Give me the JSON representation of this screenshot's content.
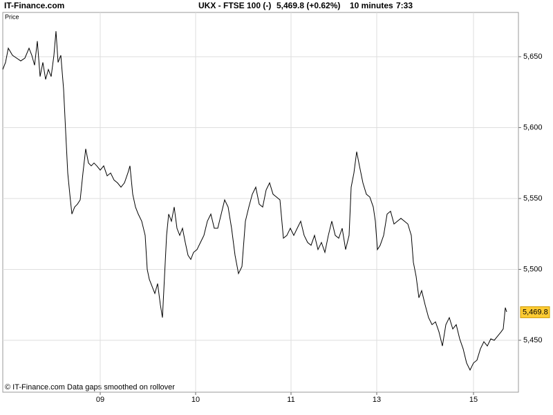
{
  "chart_data": {
    "type": "line",
    "brand": "IT-Finance.com",
    "title": "UKX - FTSE 100 (-)",
    "change": "5,469.8 (+0.62%)",
    "interval": "10 minutes",
    "time": "7:33",
    "y_label": "Price",
    "footnote": "© IT-Finance.com  Data gaps smoothed on rollover",
    "color": "#000000",
    "grid": true,
    "last": {
      "value": 5469.8,
      "label": "5,469.8"
    },
    "x": [
      0,
      4,
      8,
      14,
      20,
      26,
      32,
      38,
      42,
      46,
      50,
      54,
      58,
      62,
      66,
      70,
      74,
      77,
      80,
      84,
      88,
      91,
      94,
      97,
      100,
      104,
      108,
      112,
      116,
      120,
      124,
      128,
      132,
      136,
      141,
      146,
      151,
      156,
      161,
      166,
      171,
      176,
      181,
      184,
      188,
      192,
      196,
      201,
      206,
      209,
      212,
      216,
      220,
      224,
      228,
      231,
      234,
      237,
      240,
      244,
      248,
      252,
      256,
      260,
      264,
      268,
      272,
      276,
      281,
      286,
      291,
      296,
      301,
      306,
      311,
      316,
      321,
      326,
      331,
      336,
      341,
      346,
      351,
      356,
      361,
      366,
      371,
      376,
      381,
      386,
      391,
      396,
      401,
      406,
      411,
      416,
      421,
      426,
      431,
      436,
      441,
      446,
      451,
      456,
      461,
      466,
      471,
      476,
      481,
      486,
      491,
      496,
      501,
      504,
      508,
      512,
      516,
      521,
      526,
      531,
      536,
      539,
      542,
      546,
      551,
      556,
      561,
      566,
      571,
      576,
      581,
      586,
      591,
      594,
      598,
      602,
      606,
      611,
      616,
      621,
      626,
      631,
      636,
      641,
      646,
      651,
      656,
      661,
      666,
      671,
      676,
      681,
      686,
      691,
      696,
      701,
      706,
      711,
      716,
      721,
      724,
      727,
      729
    ],
    "values": [
      5641,
      5646,
      5656,
      5651,
      5649,
      5647,
      5649,
      5656,
      5651,
      5644,
      5661,
      5636,
      5646,
      5634,
      5641,
      5636,
      5651,
      5668,
      5646,
      5651,
      5627,
      5597,
      5568,
      5553,
      5539,
      5544,
      5546,
      5549,
      5568,
      5585,
      5575,
      5573,
      5575,
      5573,
      5570,
      5573,
      5566,
      5568,
      5563,
      5561,
      5558,
      5561,
      5568,
      5573,
      5553,
      5544,
      5539,
      5534,
      5524,
      5500,
      5493,
      5488,
      5483,
      5490,
      5475,
      5466,
      5495,
      5524,
      5539,
      5534,
      5544,
      5529,
      5524,
      5529,
      5519,
      5510,
      5507,
      5512,
      5514,
      5519,
      5524,
      5534,
      5539,
      5529,
      5529,
      5539,
      5549,
      5544,
      5529,
      5510,
      5497,
      5502,
      5534,
      5544,
      5553,
      5558,
      5546,
      5544,
      5556,
      5561,
      5553,
      5551,
      5549,
      5522,
      5524,
      5529,
      5524,
      5529,
      5534,
      5524,
      5519,
      5517,
      5524,
      5514,
      5519,
      5512,
      5524,
      5534,
      5524,
      5522,
      5529,
      5514,
      5524,
      5558,
      5568,
      5583,
      5573,
      5561,
      5553,
      5551,
      5544,
      5534,
      5514,
      5517,
      5524,
      5539,
      5541,
      5532,
      5534,
      5536,
      5534,
      5532,
      5524,
      5505,
      5495,
      5480,
      5485,
      5475,
      5466,
      5461,
      5463,
      5456,
      5446,
      5461,
      5466,
      5458,
      5461,
      5451,
      5444,
      5434,
      5429,
      5434,
      5436,
      5444,
      5449,
      5446,
      5451,
      5450,
      5453,
      5456,
      5458,
      5473,
      5470
    ],
    "xlim": [
      0,
      746
    ],
    "xticks": [
      {
        "value": 141,
        "label": "09"
      },
      {
        "value": 279,
        "label": "10"
      },
      {
        "value": 417,
        "label": "11"
      },
      {
        "value": 541,
        "label": "13"
      },
      {
        "value": 681,
        "label": "15"
      }
    ],
    "ylim": [
      5413.4,
      5681.2
    ],
    "yticks": [
      {
        "value": 5450,
        "label": "5,450"
      },
      {
        "value": 5500,
        "label": "5,500"
      },
      {
        "value": 5550,
        "label": "5,550"
      },
      {
        "value": 5600,
        "label": "5,600"
      },
      {
        "value": 5650,
        "label": "5,650"
      }
    ]
  }
}
